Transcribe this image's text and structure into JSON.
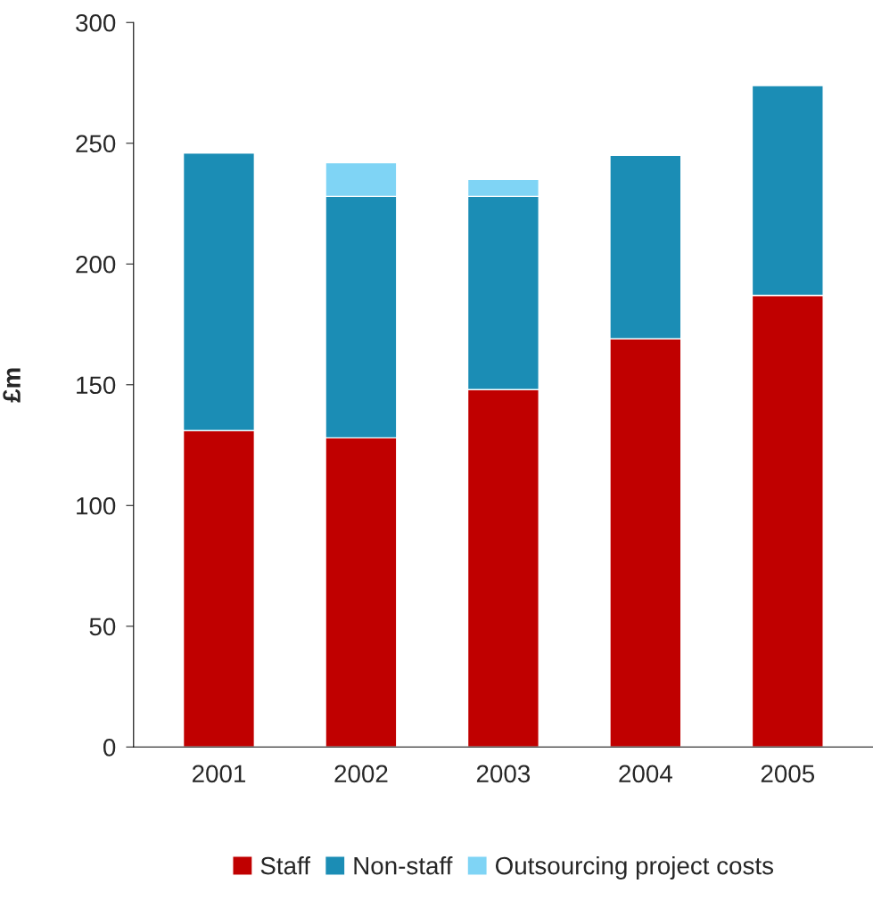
{
  "chart_data": {
    "type": "bar",
    "ylabel": "£m",
    "categories": [
      "2001",
      "2002",
      "2003",
      "2004",
      "2005"
    ],
    "stacked": true,
    "series": [
      {
        "name": "Staff",
        "color": "#c00000",
        "values": [
          131,
          128,
          148,
          169,
          187
        ]
      },
      {
        "name": "Non-staff",
        "color": "#1b8db5",
        "values": [
          115,
          100,
          80,
          76,
          87
        ]
      },
      {
        "name": "Outsourcing project costs",
        "color": "#7fd4f5",
        "values": [
          null,
          14,
          7,
          null,
          null
        ]
      }
    ],
    "ylim": [
      0,
      300
    ],
    "yticks": [
      0,
      50,
      100,
      150,
      200,
      250,
      300
    ],
    "grid": false,
    "legend": "bottom"
  }
}
